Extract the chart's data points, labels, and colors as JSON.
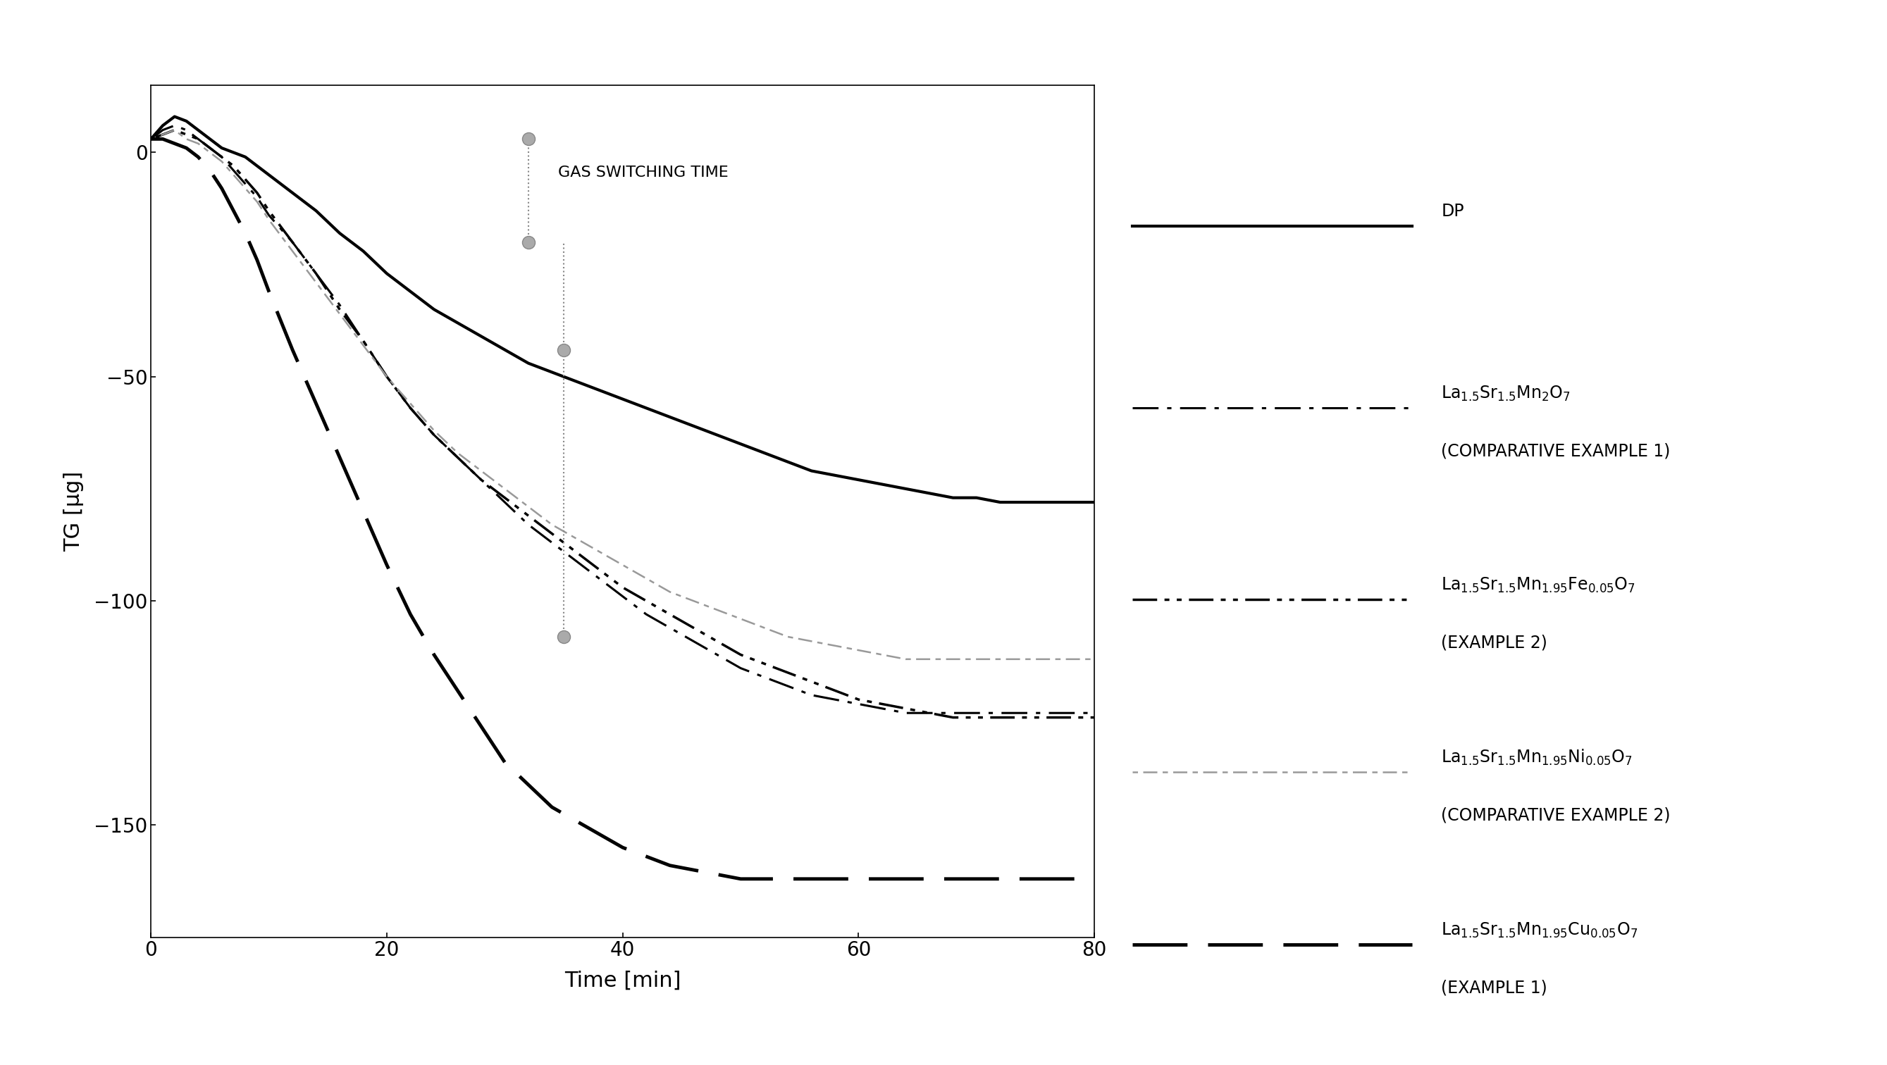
{
  "title": "",
  "xlabel": "Time [min]",
  "ylabel": "TG [μg]",
  "xlim": [
    0,
    80
  ],
  "ylim": [
    -175,
    15
  ],
  "yticks": [
    0,
    -50,
    -100,
    -150
  ],
  "xticks": [
    0,
    20,
    40,
    60,
    80
  ],
  "bg_color": "#ffffff",
  "annotation_text": "GAS SWITCHING TIME",
  "curves": {
    "DP": {
      "color": "#000000",
      "linewidth": 3.0,
      "linestyle": "solid",
      "x": [
        0,
        1,
        2,
        3,
        4,
        5,
        6,
        7,
        8,
        9,
        10,
        12,
        14,
        16,
        18,
        20,
        22,
        24,
        26,
        28,
        30,
        32,
        34,
        36,
        38,
        40,
        42,
        44,
        46,
        48,
        50,
        52,
        54,
        56,
        58,
        60,
        62,
        64,
        66,
        68,
        70,
        72,
        74,
        76,
        78,
        80
      ],
      "y": [
        3,
        6,
        8,
        7,
        5,
        3,
        1,
        0,
        -1,
        -3,
        -5,
        -9,
        -13,
        -18,
        -22,
        -27,
        -31,
        -35,
        -38,
        -41,
        -44,
        -47,
        -49,
        -51,
        -53,
        -55,
        -57,
        -59,
        -61,
        -63,
        -65,
        -67,
        -69,
        -71,
        -72,
        -73,
        -74,
        -75,
        -76,
        -77,
        -77,
        -78,
        -78,
        -78,
        -78,
        -78
      ]
    },
    "comp1": {
      "color": "#000000",
      "linewidth": 2.2,
      "dashes": [
        12,
        4,
        2,
        4
      ],
      "x": [
        0,
        1,
        2,
        3,
        4,
        5,
        6,
        7,
        8,
        9,
        10,
        12,
        14,
        16,
        18,
        20,
        22,
        24,
        26,
        28,
        30,
        32,
        34,
        36,
        38,
        40,
        42,
        44,
        46,
        48,
        50,
        52,
        54,
        56,
        58,
        60,
        62,
        64,
        66,
        68,
        70,
        72,
        74,
        76,
        78,
        80
      ],
      "y": [
        3,
        5,
        6,
        5,
        3,
        1,
        -1,
        -4,
        -7,
        -10,
        -14,
        -20,
        -27,
        -34,
        -42,
        -50,
        -57,
        -63,
        -68,
        -73,
        -78,
        -83,
        -87,
        -91,
        -95,
        -99,
        -103,
        -106,
        -109,
        -112,
        -115,
        -117,
        -119,
        -121,
        -122,
        -123,
        -124,
        -125,
        -125,
        -125,
        -125,
        -125,
        -125,
        -125,
        -125,
        -125
      ]
    },
    "ex2": {
      "color": "#000000",
      "linewidth": 2.5,
      "dashes": [
        10,
        3,
        2,
        3,
        2,
        3
      ],
      "x": [
        0,
        1,
        2,
        3,
        4,
        5,
        6,
        7,
        8,
        9,
        10,
        12,
        14,
        16,
        18,
        20,
        22,
        24,
        26,
        28,
        30,
        32,
        34,
        36,
        38,
        40,
        42,
        44,
        46,
        48,
        50,
        52,
        54,
        56,
        58,
        60,
        62,
        64,
        66,
        68,
        70,
        72,
        74,
        76,
        78,
        80
      ],
      "y": [
        3,
        4,
        5,
        4,
        3,
        1,
        -1,
        -3,
        -6,
        -9,
        -13,
        -20,
        -27,
        -35,
        -42,
        -50,
        -57,
        -63,
        -68,
        -73,
        -77,
        -81,
        -85,
        -89,
        -93,
        -97,
        -100,
        -103,
        -106,
        -109,
        -112,
        -114,
        -116,
        -118,
        -120,
        -122,
        -123,
        -124,
        -125,
        -126,
        -126,
        -126,
        -126,
        -126,
        -126,
        -126
      ]
    },
    "comp2": {
      "color": "#999999",
      "linewidth": 1.8,
      "dashes": [
        3,
        3,
        8,
        3,
        3,
        3,
        8,
        3
      ],
      "x": [
        0,
        1,
        2,
        3,
        4,
        5,
        6,
        7,
        8,
        9,
        10,
        12,
        14,
        16,
        18,
        20,
        22,
        24,
        26,
        28,
        30,
        32,
        34,
        36,
        38,
        40,
        42,
        44,
        46,
        48,
        50,
        52,
        54,
        56,
        58,
        60,
        62,
        64,
        66,
        68,
        70,
        72,
        74,
        76,
        78,
        80
      ],
      "y": [
        3,
        4,
        5,
        3,
        2,
        0,
        -2,
        -5,
        -8,
        -11,
        -15,
        -22,
        -29,
        -36,
        -43,
        -50,
        -56,
        -62,
        -67,
        -71,
        -75,
        -79,
        -83,
        -86,
        -89,
        -92,
        -95,
        -98,
        -100,
        -102,
        -104,
        -106,
        -108,
        -109,
        -110,
        -111,
        -112,
        -113,
        -113,
        -113,
        -113,
        -113,
        -113,
        -113,
        -113,
        -113
      ]
    },
    "ex1": {
      "color": "#000000",
      "linewidth": 3.5,
      "dashes": [
        16,
        6
      ],
      "x": [
        0,
        1,
        2,
        3,
        4,
        5,
        6,
        7,
        8,
        9,
        10,
        12,
        14,
        16,
        18,
        20,
        22,
        24,
        26,
        28,
        30,
        32,
        34,
        36,
        38,
        40,
        42,
        44,
        46,
        48,
        50,
        52,
        54,
        56,
        58,
        60,
        62,
        64,
        66,
        68,
        70,
        72,
        74,
        76,
        78,
        80
      ],
      "y": [
        3,
        3,
        2,
        1,
        -1,
        -4,
        -8,
        -13,
        -18,
        -24,
        -31,
        -44,
        -56,
        -68,
        -80,
        -92,
        -103,
        -112,
        -120,
        -128,
        -136,
        -141,
        -146,
        -149,
        -152,
        -155,
        -157,
        -159,
        -160,
        -161,
        -162,
        -162,
        -162,
        -162,
        -162,
        -162,
        -162,
        -162,
        -162,
        -162,
        -162,
        -162,
        -162,
        -162,
        -162,
        -162
      ]
    }
  },
  "dumbbell1": {
    "x": 32,
    "y_top": 3,
    "y_bot": -20
  },
  "dumbbell2": {
    "x": 35,
    "y_top": -44,
    "y_bot": -108
  },
  "vline": {
    "x": 35,
    "y_top": -20,
    "y_bot": -44
  }
}
